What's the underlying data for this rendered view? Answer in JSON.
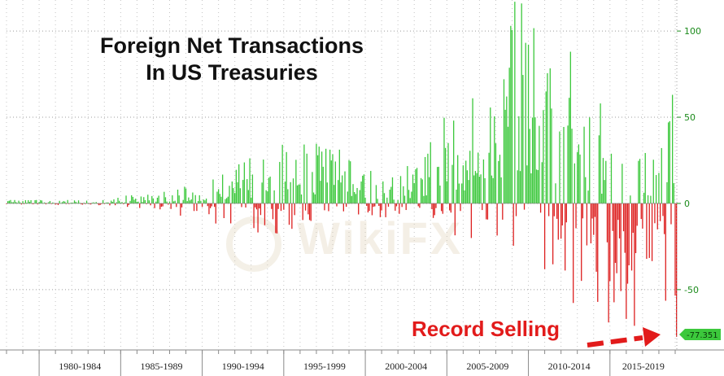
{
  "chart_data": {
    "type": "bar",
    "title_lines": [
      "Foreign Net Transactions",
      "In US Treasuries"
    ],
    "x_period_labels": [
      "1980-1984",
      "1985-1989",
      "1990-1994",
      "1995-1999",
      "2000-2004",
      "2005-2009",
      "2010-2014",
      "2015-2019"
    ],
    "y_ticks": [
      100,
      50,
      0,
      -50
    ],
    "ylim": [
      -85,
      118
    ],
    "grid": true,
    "last_value_label": "-77.351",
    "annotation": "Record Selling",
    "watermark": "WikiFX",
    "colors": {
      "positive": "#3cc83c",
      "negative": "#dd1f1f",
      "axis_text": "#1a8a1a",
      "annotation": "#e21b1b"
    },
    "x_start_year": 1978,
    "x_end_year": 2019.1,
    "bar_interval": "monthly",
    "envelope_keypoints": [
      [
        1978,
        3,
        -1
      ],
      [
        1980,
        2,
        -1
      ],
      [
        1983,
        2,
        -1
      ],
      [
        1985,
        4,
        -2
      ],
      [
        1987,
        8,
        -4
      ],
      [
        1990,
        12,
        -10
      ],
      [
        1992,
        22,
        -16
      ],
      [
        1994.5,
        34,
        -20
      ],
      [
        1996,
        40,
        -15
      ],
      [
        1998,
        36,
        -14
      ],
      [
        2000,
        20,
        -6
      ],
      [
        2002,
        16,
        -14
      ],
      [
        2004,
        40,
        -8
      ],
      [
        2005,
        55,
        -20
      ],
      [
        2007,
        62,
        -25
      ],
      [
        2008.5,
        100,
        -35
      ],
      [
        2010,
        112,
        -28
      ],
      [
        2011,
        112,
        -50
      ],
      [
        2012,
        85,
        -55
      ],
      [
        2013,
        70,
        -60
      ],
      [
        2014,
        58,
        -55
      ],
      [
        2015,
        35,
        -72
      ],
      [
        2016,
        28,
        -70
      ],
      [
        2017,
        28,
        -55
      ],
      [
        2018,
        38,
        -52
      ],
      [
        2019,
        60,
        -77
      ]
    ],
    "highlighted_points": [
      {
        "year": 2006.6,
        "value": 61
      },
      {
        "year": 2008.9,
        "value": 103
      },
      {
        "year": 2009.2,
        "value": 117
      },
      {
        "year": 2009.6,
        "value": 116
      },
      {
        "year": 2012.6,
        "value": 88
      },
      {
        "year": 2014.4,
        "value": 58
      },
      {
        "year": 2018.6,
        "value": 47
      },
      {
        "year": 2018.85,
        "value": 63
      },
      {
        "year": 2016.0,
        "value": -67
      },
      {
        "year": 2016.5,
        "value": -71
      },
      {
        "year": 2019.05,
        "value": -77.351
      }
    ]
  }
}
